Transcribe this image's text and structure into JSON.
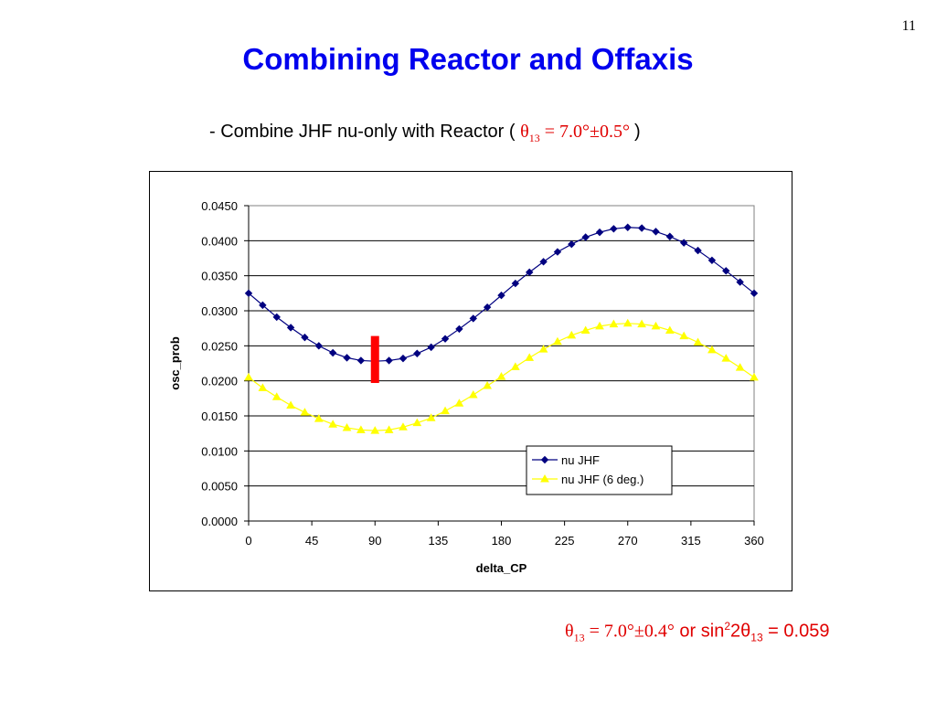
{
  "page_number": "11",
  "title": "Combining Reactor and Offaxis",
  "subtitle": {
    "prefix": "- Combine JHF nu-only with Reactor ( ",
    "theta": "θ",
    "theta_sub": "13",
    "value": " = 7.0°±0.5° ",
    "suffix": ")"
  },
  "footnote": {
    "theta": "θ",
    "theta_sub": "13",
    "value": " = 7.0°±0.4°",
    "or_text": " or sin",
    "sup": "2",
    "two_theta": "2θ",
    "sub2": "13",
    "result": " = 0.059"
  },
  "colors": {
    "title": "#0000ee",
    "accent_red": "#e00000",
    "series_nu_jhf": "#000080",
    "series_nu_jhf_6deg": "#ffff00"
  },
  "chart_data": {
    "type": "line",
    "xlabel": "delta_CP",
    "ylabel": "osc_prob",
    "xlim": [
      0,
      360
    ],
    "ylim": [
      0,
      0.045
    ],
    "x_ticks": [
      "0",
      "45",
      "90",
      "135",
      "180",
      "225",
      "270",
      "315",
      "360"
    ],
    "y_ticks": [
      "0.0000",
      "0.0050",
      "0.0100",
      "0.0150",
      "0.0200",
      "0.0250",
      "0.0300",
      "0.0350",
      "0.0400",
      "0.0450"
    ],
    "grid": "horizontal",
    "legend_placement": "bottom-right",
    "x": [
      0,
      10,
      20,
      30,
      40,
      50,
      60,
      70,
      80,
      90,
      100,
      110,
      120,
      130,
      140,
      150,
      160,
      170,
      180,
      190,
      200,
      210,
      220,
      230,
      240,
      250,
      260,
      270,
      280,
      290,
      300,
      310,
      320,
      330,
      340,
      350,
      360
    ],
    "series": [
      {
        "name": "nu JHF",
        "color": "#000080",
        "marker": "diamond",
        "values": [
          0.0325,
          0.0308,
          0.0291,
          0.0276,
          0.0262,
          0.025,
          0.024,
          0.0233,
          0.0229,
          0.0228,
          0.0229,
          0.0232,
          0.0239,
          0.0248,
          0.026,
          0.0274,
          0.0289,
          0.0305,
          0.0322,
          0.0339,
          0.0355,
          0.037,
          0.0384,
          0.0395,
          0.0405,
          0.0412,
          0.0417,
          0.0419,
          0.0418,
          0.0413,
          0.0406,
          0.0397,
          0.0386,
          0.0372,
          0.0357,
          0.0341,
          0.0325
        ]
      },
      {
        "name": "nu JHF (6 deg.)",
        "color": "#ffff00",
        "marker": "triangle",
        "values": [
          0.0205,
          0.019,
          0.0177,
          0.0165,
          0.0155,
          0.0146,
          0.0138,
          0.0133,
          0.013,
          0.0129,
          0.013,
          0.0134,
          0.014,
          0.0147,
          0.0157,
          0.0168,
          0.018,
          0.0193,
          0.0206,
          0.022,
          0.0233,
          0.0245,
          0.0256,
          0.0265,
          0.0272,
          0.0278,
          0.0281,
          0.0282,
          0.0281,
          0.0278,
          0.0272,
          0.0264,
          0.0255,
          0.0244,
          0.0232,
          0.0219,
          0.0205
        ]
      }
    ],
    "annotation": {
      "type": "error-bar",
      "color": "#ff0000",
      "x": 90,
      "y_low": 0.0197,
      "y_high": 0.0264
    }
  }
}
